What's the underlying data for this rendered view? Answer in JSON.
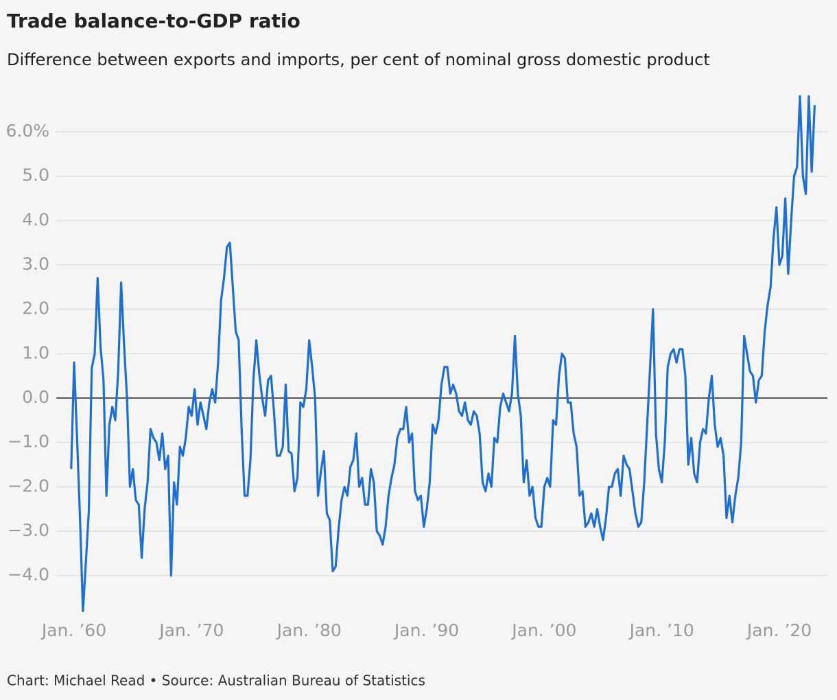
{
  "chart_data": {
    "type": "line",
    "title": "Trade balance-to-GDP ratio",
    "subtitle": "Difference between exports and imports, per cent of nominal gross domestic product",
    "footer": "Chart: Michael Read • Source: Australian Bureau of Statistics",
    "xlim": [
      1959,
      2023.5
    ],
    "ylim": [
      -4.9,
      7.0
    ],
    "xticks": [
      {
        "value": 1960,
        "label": "Jan. ’60"
      },
      {
        "value": 1970,
        "label": "Jan. ’70"
      },
      {
        "value": 1980,
        "label": "Jan. ’80"
      },
      {
        "value": 1990,
        "label": "Jan. ’90"
      },
      {
        "value": 2000,
        "label": "Jan. ’00"
      },
      {
        "value": 2010,
        "label": "Jan. ’10"
      },
      {
        "value": 2020,
        "label": "Jan. ’20"
      }
    ],
    "yticks": [
      {
        "value": -4,
        "label": "−4.0"
      },
      {
        "value": -3,
        "label": "−3.0"
      },
      {
        "value": -2,
        "label": "−2.0"
      },
      {
        "value": -1,
        "label": "−1.0"
      },
      {
        "value": 0,
        "label": "0.0"
      },
      {
        "value": 1,
        "label": "1.0"
      },
      {
        "value": 2,
        "label": "2.0"
      },
      {
        "value": 3,
        "label": "3.0"
      },
      {
        "value": 4,
        "label": "4.0"
      },
      {
        "value": 5,
        "label": "5.0"
      },
      {
        "value": 6,
        "label": "6.0%"
      }
    ],
    "grid": true,
    "zero_line": true,
    "x": [
      1959.75,
      1960,
      1960.25,
      1960.5,
      1960.75,
      1961,
      1961.25,
      1961.5,
      1961.75,
      1962,
      1962.25,
      1962.5,
      1962.75,
      1963,
      1963.25,
      1963.5,
      1963.75,
      1964,
      1964.25,
      1964.5,
      1964.75,
      1965,
      1965.25,
      1965.5,
      1965.75,
      1966,
      1966.25,
      1966.5,
      1966.75,
      1967,
      1967.25,
      1967.5,
      1967.75,
      1968,
      1968.25,
      1968.5,
      1968.75,
      1969,
      1969.25,
      1969.5,
      1969.75,
      1970,
      1970.25,
      1970.5,
      1970.75,
      1971,
      1971.25,
      1971.5,
      1971.75,
      1972,
      1972.25,
      1972.5,
      1972.75,
      1973,
      1973.25,
      1973.5,
      1973.75,
      1974,
      1974.25,
      1974.5,
      1974.75,
      1975,
      1975.25,
      1975.5,
      1975.75,
      1976,
      1976.25,
      1976.5,
      1976.75,
      1977,
      1977.25,
      1977.5,
      1977.75,
      1978,
      1978.25,
      1978.5,
      1978.75,
      1979,
      1979.25,
      1979.5,
      1979.75,
      1980,
      1980.25,
      1980.5,
      1980.75,
      1981,
      1981.25,
      1981.5,
      1981.75,
      1982,
      1982.25,
      1982.5,
      1982.75,
      1983,
      1983.25,
      1983.5,
      1983.75,
      1984,
      1984.25,
      1984.5,
      1984.75,
      1985,
      1985.25,
      1985.5,
      1985.75,
      1986,
      1986.25,
      1986.5,
      1986.75,
      1987,
      1987.25,
      1987.5,
      1987.75,
      1988,
      1988.25,
      1988.5,
      1988.75,
      1989,
      1989.25,
      1989.5,
      1989.75,
      1990,
      1990.25,
      1990.5,
      1990.75,
      1991,
      1991.25,
      1991.5,
      1991.75,
      1992,
      1992.25,
      1992.5,
      1992.75,
      1993,
      1993.25,
      1993.5,
      1993.75,
      1994,
      1994.25,
      1994.5,
      1994.75,
      1995,
      1995.25,
      1995.5,
      1995.75,
      1996,
      1996.25,
      1996.5,
      1996.75,
      1997,
      1997.25,
      1997.5,
      1997.75,
      1998,
      1998.25,
      1998.5,
      1998.75,
      1999,
      1999.25,
      1999.5,
      1999.75,
      2000,
      2000.25,
      2000.5,
      2000.75,
      2001,
      2001.25,
      2001.5,
      2001.75,
      2002,
      2002.25,
      2002.5,
      2002.75,
      2003,
      2003.25,
      2003.5,
      2003.75,
      2004,
      2004.25,
      2004.5,
      2004.75,
      2005,
      2005.25,
      2005.5,
      2005.75,
      2006,
      2006.25,
      2006.5,
      2006.75,
      2007,
      2007.25,
      2007.5,
      2007.75,
      2008,
      2008.25,
      2008.5,
      2008.75,
      2009,
      2009.25,
      2009.5,
      2009.75,
      2010,
      2010.25,
      2010.5,
      2010.75,
      2011,
      2011.25,
      2011.5,
      2011.75,
      2012,
      2012.25,
      2012.5,
      2012.75,
      2013,
      2013.25,
      2013.5,
      2013.75,
      2014,
      2014.25,
      2014.5,
      2014.75,
      2015,
      2015.25,
      2015.5,
      2015.75,
      2016,
      2016.25,
      2016.5,
      2016.75,
      2017,
      2017.25,
      2017.5,
      2017.75,
      2018,
      2018.25,
      2018.5,
      2018.75,
      2019,
      2019.25,
      2019.5,
      2019.75,
      2020,
      2020.25,
      2020.5,
      2020.75,
      2021,
      2021.25,
      2021.5,
      2021.75,
      2022,
      2022.25,
      2022.5,
      2022.75,
      2023
    ],
    "series": [
      {
        "color": "#1f6fd1",
        "values": [
          -1.6,
          0.8,
          -0.9,
          -2.7,
          -4.8,
          -3.7,
          -2.55,
          0.67,
          1.0,
          2.7,
          1.15,
          0.4,
          -2.2,
          -0.6,
          -0.2,
          -0.5,
          0.6,
          2.6,
          1.2,
          0,
          -2.0,
          -1.6,
          -2.3,
          -2.4,
          -3.6,
          -2.5,
          -1.9,
          -0.7,
          -0.9,
          -1.0,
          -1.4,
          -0.8,
          -1.6,
          -1.3,
          -4.0,
          -1.9,
          -2.4,
          -1.1,
          -1.3,
          -0.9,
          -0.2,
          -0.4,
          0.2,
          -0.6,
          -0.1,
          -0.4,
          -0.7,
          -0.1,
          0.2,
          -0.1,
          0.8,
          2.2,
          2.7,
          3.4,
          3.5,
          2.5,
          1.5,
          1.3,
          -0.7,
          -2.2,
          -2.2,
          -1.4,
          0.4,
          1.3,
          0.55,
          0,
          -0.4,
          0.4,
          0.5,
          -0.3,
          -1.3,
          -1.3,
          -1.1,
          0.3,
          -1.2,
          -1.25,
          -2.1,
          -1.8,
          -0.1,
          -0.2,
          0.2,
          1.3,
          0.7,
          0,
          -2.2,
          -1.65,
          -1.2,
          -2.6,
          -2.75,
          -3.9,
          -3.8,
          -2.95,
          -2.3,
          -2.0,
          -2.2,
          -1.55,
          -1.4,
          -0.8,
          -2.0,
          -1.8,
          -2.4,
          -2.4,
          -1.6,
          -1.9,
          -3.0,
          -3.1,
          -3.3,
          -2.9,
          -2.2,
          -1.8,
          -1.5,
          -0.9,
          -0.7,
          -0.7,
          -0.2,
          -1.0,
          -0.8,
          -2.1,
          -2.3,
          -2.2,
          -2.9,
          -2.5,
          -1.9,
          -0.6,
          -0.8,
          -0.5,
          0.3,
          0.7,
          0.7,
          0.1,
          0.3,
          0.1,
          -0.3,
          -0.4,
          -0.1,
          -0.5,
          -0.6,
          -0.3,
          -0.4,
          -0.8,
          -1.9,
          -2.1,
          -1.7,
          -2.0,
          -0.9,
          -1.0,
          -0.2,
          0.1,
          -0.1,
          -0.3,
          0.1,
          1.4,
          0.1,
          -0.4,
          -1.9,
          -1.4,
          -2.2,
          -2.0,
          -2.7,
          -2.9,
          -2.9,
          -2.0,
          -1.8,
          -2.0,
          -0.5,
          -0.6,
          0.5,
          1.0,
          0.9,
          -0.1,
          -0.1,
          -0.8,
          -1.1,
          -2.2,
          -2.1,
          -2.9,
          -2.8,
          -2.6,
          -2.9,
          -2.5,
          -2.9,
          -3.2,
          -2.7,
          -2.0,
          -2.0,
          -1.7,
          -1.6,
          -2.2,
          -1.3,
          -1.5,
          -1.6,
          -2.1,
          -2.6,
          -2.9,
          -2.8,
          -1.9,
          -0.6,
          0.7,
          2.0,
          -0.8,
          -1.6,
          -1.9,
          -1.0,
          0.7,
          1.0,
          1.1,
          0.8,
          1.1,
          1.1,
          0.5,
          -1.5,
          -0.9,
          -1.7,
          -1.9,
          -1.0,
          -0.7,
          -0.8,
          0.0,
          0.5,
          -0.6,
          -1.1,
          -0.9,
          -1.3,
          -2.7,
          -2.2,
          -2.8,
          -2.2,
          -1.8,
          -1.0,
          1.4,
          1.0,
          0.6,
          0.5,
          -0.1,
          0.4,
          0.5,
          1.5,
          2.1,
          2.5,
          3.6,
          4.3,
          3.0,
          3.2,
          4.5,
          2.8,
          4.0,
          5.0,
          5.2,
          6.8,
          5.0,
          4.6,
          6.8,
          5.1,
          6.6
        ]
      }
    ]
  }
}
